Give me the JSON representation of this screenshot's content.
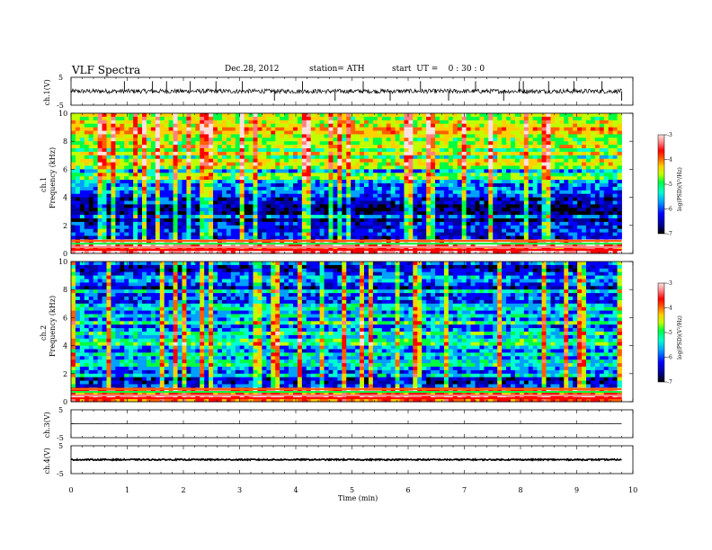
{
  "header": {
    "title": "VLF  Spectra",
    "date": "Dec.28, 2012",
    "station": "station= ATH",
    "start": "start  UT =    0 : 30 : 0"
  },
  "colors": {
    "background": "#ffffff",
    "axis": "#000000",
    "colormap": [
      "#000000",
      "#0000a0",
      "#0000ff",
      "#00a0ff",
      "#00ffd0",
      "#00ff40",
      "#c0ff00",
      "#ffd000",
      "#ff6000",
      "#ff0000",
      "#ff8080",
      "#ffe0e0"
    ]
  },
  "chart_data": [
    {
      "type": "line",
      "panel": "ch.1 waveform",
      "ylabel": "ch.1(V)",
      "ylim": [
        -5,
        5
      ],
      "yticks": [
        "5",
        "-5"
      ],
      "xlim": [
        0,
        10
      ],
      "baseline": 0.0,
      "spike_times": [
        0.95,
        1.45,
        1.7,
        2.12,
        2.58,
        3.05,
        3.62,
        4.12,
        4.7,
        5.2,
        5.68,
        6.22,
        6.72,
        7.2,
        7.7,
        7.98,
        8.05,
        8.5,
        8.95,
        9.45,
        9.8
      ]
    },
    {
      "type": "heatmap",
      "panel": "ch.1 spectrogram",
      "ylabel": "ch.1 Frequency  (kHz)",
      "xlim": [
        0,
        9.8
      ],
      "ylim": [
        0,
        10
      ],
      "yticks": [
        "10",
        "8",
        "6",
        "4",
        "2",
        "0"
      ],
      "colorbar": {
        "label": "log(PSD)(V²/Hz)",
        "ticks": [
          "-3",
          "-4",
          "-5",
          "-6",
          "-7"
        ],
        "range": [
          -7,
          -3
        ]
      },
      "mean_log_psd": {
        "freq_khz": [
          0.5,
          1.5,
          2.5,
          3.5,
          4.5,
          5.5,
          6.5,
          7.5,
          8.5,
          9.5
        ],
        "values": [
          -3.6,
          -6.3,
          -6.4,
          -6.3,
          -6.0,
          -5.4,
          -5.1,
          -4.8,
          -4.7,
          -4.8
        ]
      }
    },
    {
      "type": "heatmap",
      "panel": "ch.2 spectrogram",
      "ylabel": "ch.2 Frequency  (kHz)",
      "xlim": [
        0,
        9.8
      ],
      "ylim": [
        0,
        10
      ],
      "yticks": [
        "10",
        "8",
        "6",
        "4",
        "2",
        "0"
      ],
      "colorbar": {
        "label": "log(PSD)(V²/Hz)",
        "ticks": [
          "-3",
          "-4",
          "-5",
          "-6",
          "-7"
        ],
        "range": [
          -7,
          -3
        ]
      },
      "mean_log_psd": {
        "freq_khz": [
          0.5,
          1.5,
          2.5,
          3.5,
          4.5,
          5.5,
          6.5,
          7.5,
          8.5,
          9.5
        ],
        "values": [
          -3.8,
          -6.0,
          -5.8,
          -5.6,
          -5.4,
          -5.6,
          -5.7,
          -5.9,
          -6.0,
          -6.1
        ]
      }
    },
    {
      "type": "line",
      "panel": "ch.3 waveform",
      "ylabel": "ch.3(V)",
      "ylim": [
        -5,
        5
      ],
      "yticks": [
        "5",
        "-5"
      ],
      "xlim": [
        0,
        10
      ],
      "baseline": 0.0
    },
    {
      "type": "line",
      "panel": "ch.4 waveform",
      "ylabel": "ch.4(V)",
      "ylim": [
        -5,
        5
      ],
      "yticks": [
        "5",
        "-5"
      ],
      "xlim": [
        0,
        10
      ],
      "baseline": 0.0
    }
  ],
  "xaxis": {
    "label": "Time  (min)",
    "ticks": [
      "0",
      "1",
      "2",
      "3",
      "4",
      "5",
      "6",
      "7",
      "8",
      "9",
      "10"
    ]
  }
}
